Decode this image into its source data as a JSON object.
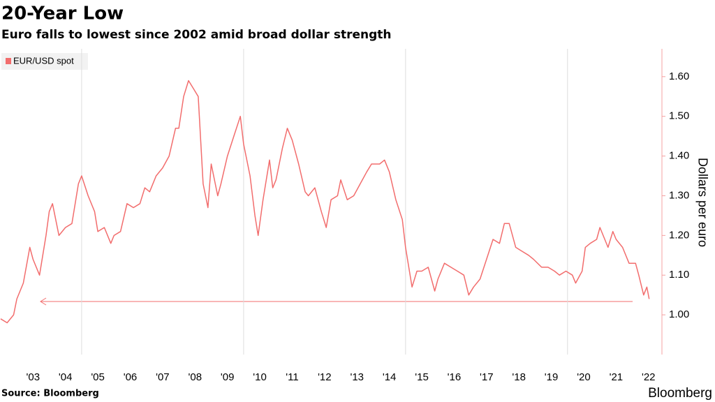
{
  "chart_data": {
    "type": "line",
    "title": "20-Year Low",
    "subtitle": "Euro falls to lowest since 2002 amid broad dollar strength",
    "source": "Source: Bloomberg",
    "brand": "Bloomberg",
    "y_label": "Dollars per euro",
    "x": [
      2002.5,
      2002.7,
      2002.9,
      2003.0,
      2003.2,
      2003.4,
      2003.5,
      2003.7,
      2003.9,
      2004.0,
      2004.1,
      2004.3,
      2004.5,
      2004.7,
      2004.9,
      2005.0,
      2005.2,
      2005.4,
      2005.5,
      2005.7,
      2005.9,
      2006.0,
      2006.2,
      2006.4,
      2006.6,
      2006.8,
      2006.95,
      2007.1,
      2007.3,
      2007.5,
      2007.7,
      2007.9,
      2008.0,
      2008.15,
      2008.3,
      2008.45,
      2008.6,
      2008.75,
      2008.9,
      2009.0,
      2009.2,
      2009.3,
      2009.5,
      2009.7,
      2009.9,
      2010.0,
      2010.2,
      2010.35,
      2010.45,
      2010.6,
      2010.8,
      2010.9,
      2011.0,
      2011.2,
      2011.35,
      2011.5,
      2011.7,
      2011.9,
      2012.0,
      2012.2,
      2012.4,
      2012.55,
      2012.7,
      2012.9,
      2013.0,
      2013.2,
      2013.4,
      2013.6,
      2013.8,
      2013.95,
      2014.2,
      2014.35,
      2014.5,
      2014.7,
      2014.9,
      2015.0,
      2015.2,
      2015.35,
      2015.5,
      2015.7,
      2015.9,
      2016.0,
      2016.2,
      2016.4,
      2016.6,
      2016.8,
      2016.95,
      2017.1,
      2017.3,
      2017.5,
      2017.7,
      2017.9,
      2018.05,
      2018.2,
      2018.4,
      2018.6,
      2018.8,
      2018.95,
      2019.2,
      2019.4,
      2019.6,
      2019.75,
      2019.95,
      2020.15,
      2020.25,
      2020.45,
      2020.55,
      2020.7,
      2020.9,
      2021.0,
      2021.25,
      2021.4,
      2021.5,
      2021.7,
      2021.9,
      2022.1,
      2022.2,
      2022.35,
      2022.45,
      2022.52
    ],
    "series": [
      {
        "name": "EUR/USD spot",
        "color": "#f26d6d",
        "values": [
          0.99,
          0.98,
          1.0,
          1.04,
          1.08,
          1.17,
          1.14,
          1.1,
          1.2,
          1.26,
          1.28,
          1.2,
          1.22,
          1.23,
          1.33,
          1.35,
          1.3,
          1.26,
          1.21,
          1.22,
          1.18,
          1.2,
          1.21,
          1.28,
          1.27,
          1.28,
          1.32,
          1.31,
          1.35,
          1.37,
          1.4,
          1.47,
          1.47,
          1.55,
          1.59,
          1.57,
          1.55,
          1.33,
          1.27,
          1.38,
          1.3,
          1.33,
          1.4,
          1.45,
          1.5,
          1.43,
          1.35,
          1.25,
          1.2,
          1.29,
          1.39,
          1.32,
          1.34,
          1.42,
          1.47,
          1.44,
          1.38,
          1.31,
          1.3,
          1.32,
          1.26,
          1.22,
          1.29,
          1.3,
          1.34,
          1.29,
          1.3,
          1.33,
          1.36,
          1.38,
          1.38,
          1.39,
          1.36,
          1.29,
          1.24,
          1.17,
          1.07,
          1.11,
          1.11,
          1.12,
          1.06,
          1.09,
          1.13,
          1.12,
          1.11,
          1.1,
          1.05,
          1.07,
          1.09,
          1.14,
          1.19,
          1.18,
          1.23,
          1.23,
          1.17,
          1.16,
          1.15,
          1.14,
          1.12,
          1.12,
          1.11,
          1.1,
          1.11,
          1.1,
          1.08,
          1.11,
          1.17,
          1.18,
          1.19,
          1.22,
          1.17,
          1.21,
          1.19,
          1.17,
          1.13,
          1.13,
          1.1,
          1.05,
          1.07,
          1.04
        ]
      }
    ],
    "xlim": [
      2002.48,
      2022.85
    ],
    "xticks": [
      {
        "value": 2003.5,
        "label": "'03"
      },
      {
        "value": 2004.5,
        "label": "'04"
      },
      {
        "value": 2005.5,
        "label": "'05"
      },
      {
        "value": 2006.5,
        "label": "'06"
      },
      {
        "value": 2007.5,
        "label": "'07"
      },
      {
        "value": 2008.5,
        "label": "'08"
      },
      {
        "value": 2009.5,
        "label": "'09"
      },
      {
        "value": 2010.5,
        "label": "'10"
      },
      {
        "value": 2011.5,
        "label": "'11"
      },
      {
        "value": 2012.5,
        "label": "'12"
      },
      {
        "value": 2013.5,
        "label": "'13"
      },
      {
        "value": 2014.5,
        "label": "'14"
      },
      {
        "value": 2015.5,
        "label": "'15"
      },
      {
        "value": 2016.5,
        "label": "'16"
      },
      {
        "value": 2017.5,
        "label": "'17"
      },
      {
        "value": 2018.5,
        "label": "'18"
      },
      {
        "value": 2019.5,
        "label": "'19"
      },
      {
        "value": 2020.5,
        "label": "'20"
      },
      {
        "value": 2021.5,
        "label": "'21"
      },
      {
        "value": 2022.5,
        "label": "'22"
      }
    ],
    "xgrid": [
      2005,
      2010,
      2015,
      2020
    ],
    "ylim": [
      0.9,
      1.67
    ],
    "yticks": [
      {
        "value": 1,
        "label": "1.00"
      },
      {
        "value": 1.1,
        "label": "1.10"
      },
      {
        "value": 1.2,
        "label": "1.20"
      },
      {
        "value": 1.3,
        "label": "1.30"
      },
      {
        "value": 1.4,
        "label": "1.40"
      },
      {
        "value": 1.5,
        "label": "1.50"
      },
      {
        "value": 1.6,
        "label": "1.60"
      }
    ]
  }
}
